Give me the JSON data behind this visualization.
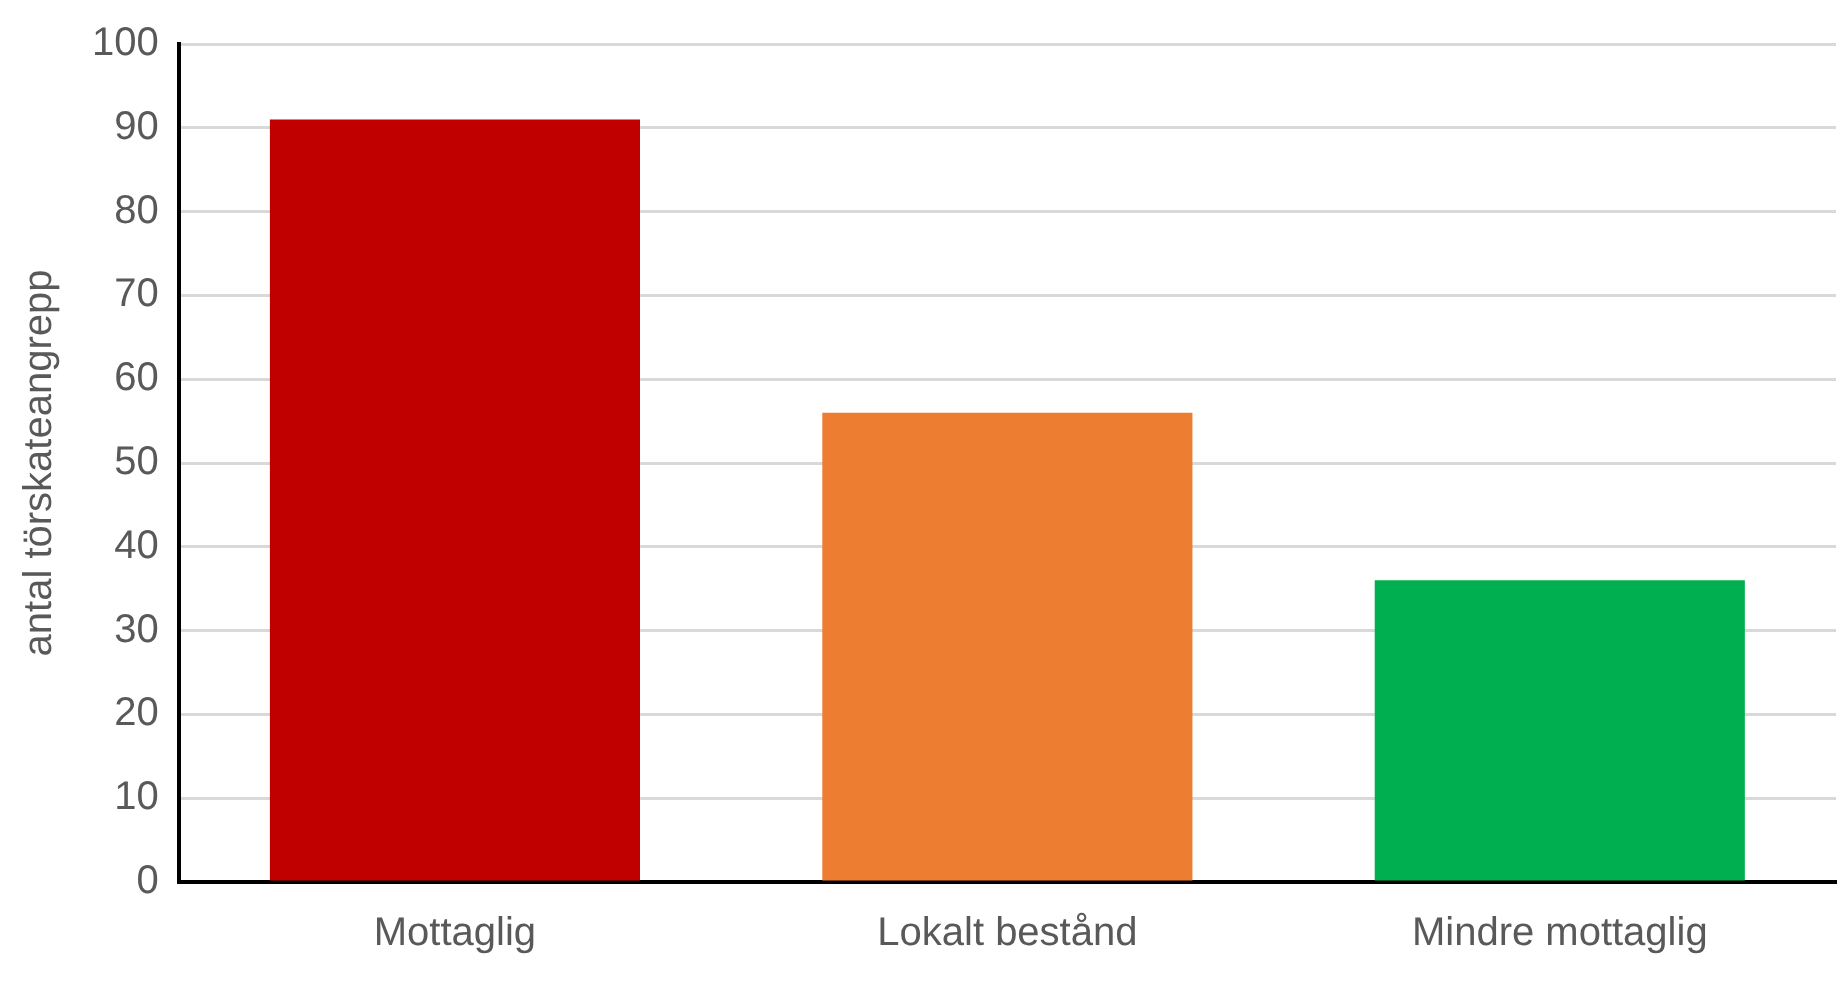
{
  "chart_data": {
    "type": "bar",
    "ylabel": "antal törskateangrepp",
    "categories": [
      "Mottaglig",
      "Lokalt bestånd",
      "Mindre mottaglig"
    ],
    "values": [
      91,
      56,
      36
    ],
    "colors": [
      "#c00000",
      "#ed7d31",
      "#00b050"
    ],
    "ylim": [
      0,
      100
    ],
    "yticks": [
      0,
      10,
      20,
      30,
      40,
      50,
      60,
      70,
      80,
      90,
      100
    ],
    "grid": "y",
    "legend": false
  }
}
